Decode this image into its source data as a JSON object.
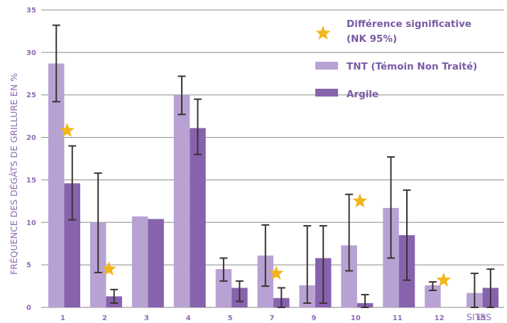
{
  "chart_data": {
    "type": "bar",
    "ylabel": "FRÉQUENCE DES DÉGÂTS DE GRILLURE EN %",
    "xlabel": "SITES",
    "ylim": [
      0,
      35
    ],
    "yticks": [
      "0",
      "5",
      "10",
      "15",
      "20",
      "25",
      "30",
      "35"
    ],
    "grid": true,
    "categories": [
      "1",
      "2",
      "3",
      "4",
      "5",
      "7",
      "9",
      "10",
      "11",
      "12",
      "13"
    ],
    "series": [
      {
        "name": "TNT (Témoin Non Traité)",
        "color": "#b8a2d3",
        "values": [
          28.7,
          10.0,
          10.7,
          25.0,
          4.5,
          6.1,
          2.6,
          7.3,
          11.7,
          2.6,
          1.7
        ],
        "error_low": [
          24.2,
          4.1,
          null,
          22.7,
          3.1,
          2.5,
          0.5,
          4.3,
          5.8,
          2.0,
          0.0
        ],
        "error_high": [
          33.2,
          15.8,
          null,
          27.2,
          5.8,
          9.7,
          9.6,
          13.3,
          17.7,
          3.0,
          4.0
        ]
      },
      {
        "name": "Argile",
        "color": "#8763ae",
        "values": [
          14.6,
          1.3,
          10.4,
          21.1,
          2.3,
          1.1,
          5.8,
          0.5,
          8.5,
          0.0,
          2.3
        ],
        "error_low": [
          10.3,
          0.5,
          null,
          18.0,
          0.7,
          0.0,
          0.5,
          0.0,
          3.2,
          null,
          0.0
        ],
        "error_high": [
          19.0,
          2.1,
          null,
          24.5,
          3.1,
          2.3,
          9.6,
          1.5,
          13.8,
          null,
          4.5
        ]
      }
    ],
    "significance_stars": {
      "color": "#f2b51b",
      "sites": [
        "1",
        "2",
        "7",
        "10",
        "12"
      ],
      "y_values": [
        20.8,
        4.5,
        4.0,
        12.5,
        3.2
      ]
    },
    "legend": {
      "placement": "top-right",
      "star_label": "Différence significative (NK 95%)",
      "star_label_lines": [
        "Différence significative",
        "(NK 95%)"
      ],
      "tnt_label": "TNT (Témoin Non Traité)",
      "argile_label": "Argile"
    }
  }
}
